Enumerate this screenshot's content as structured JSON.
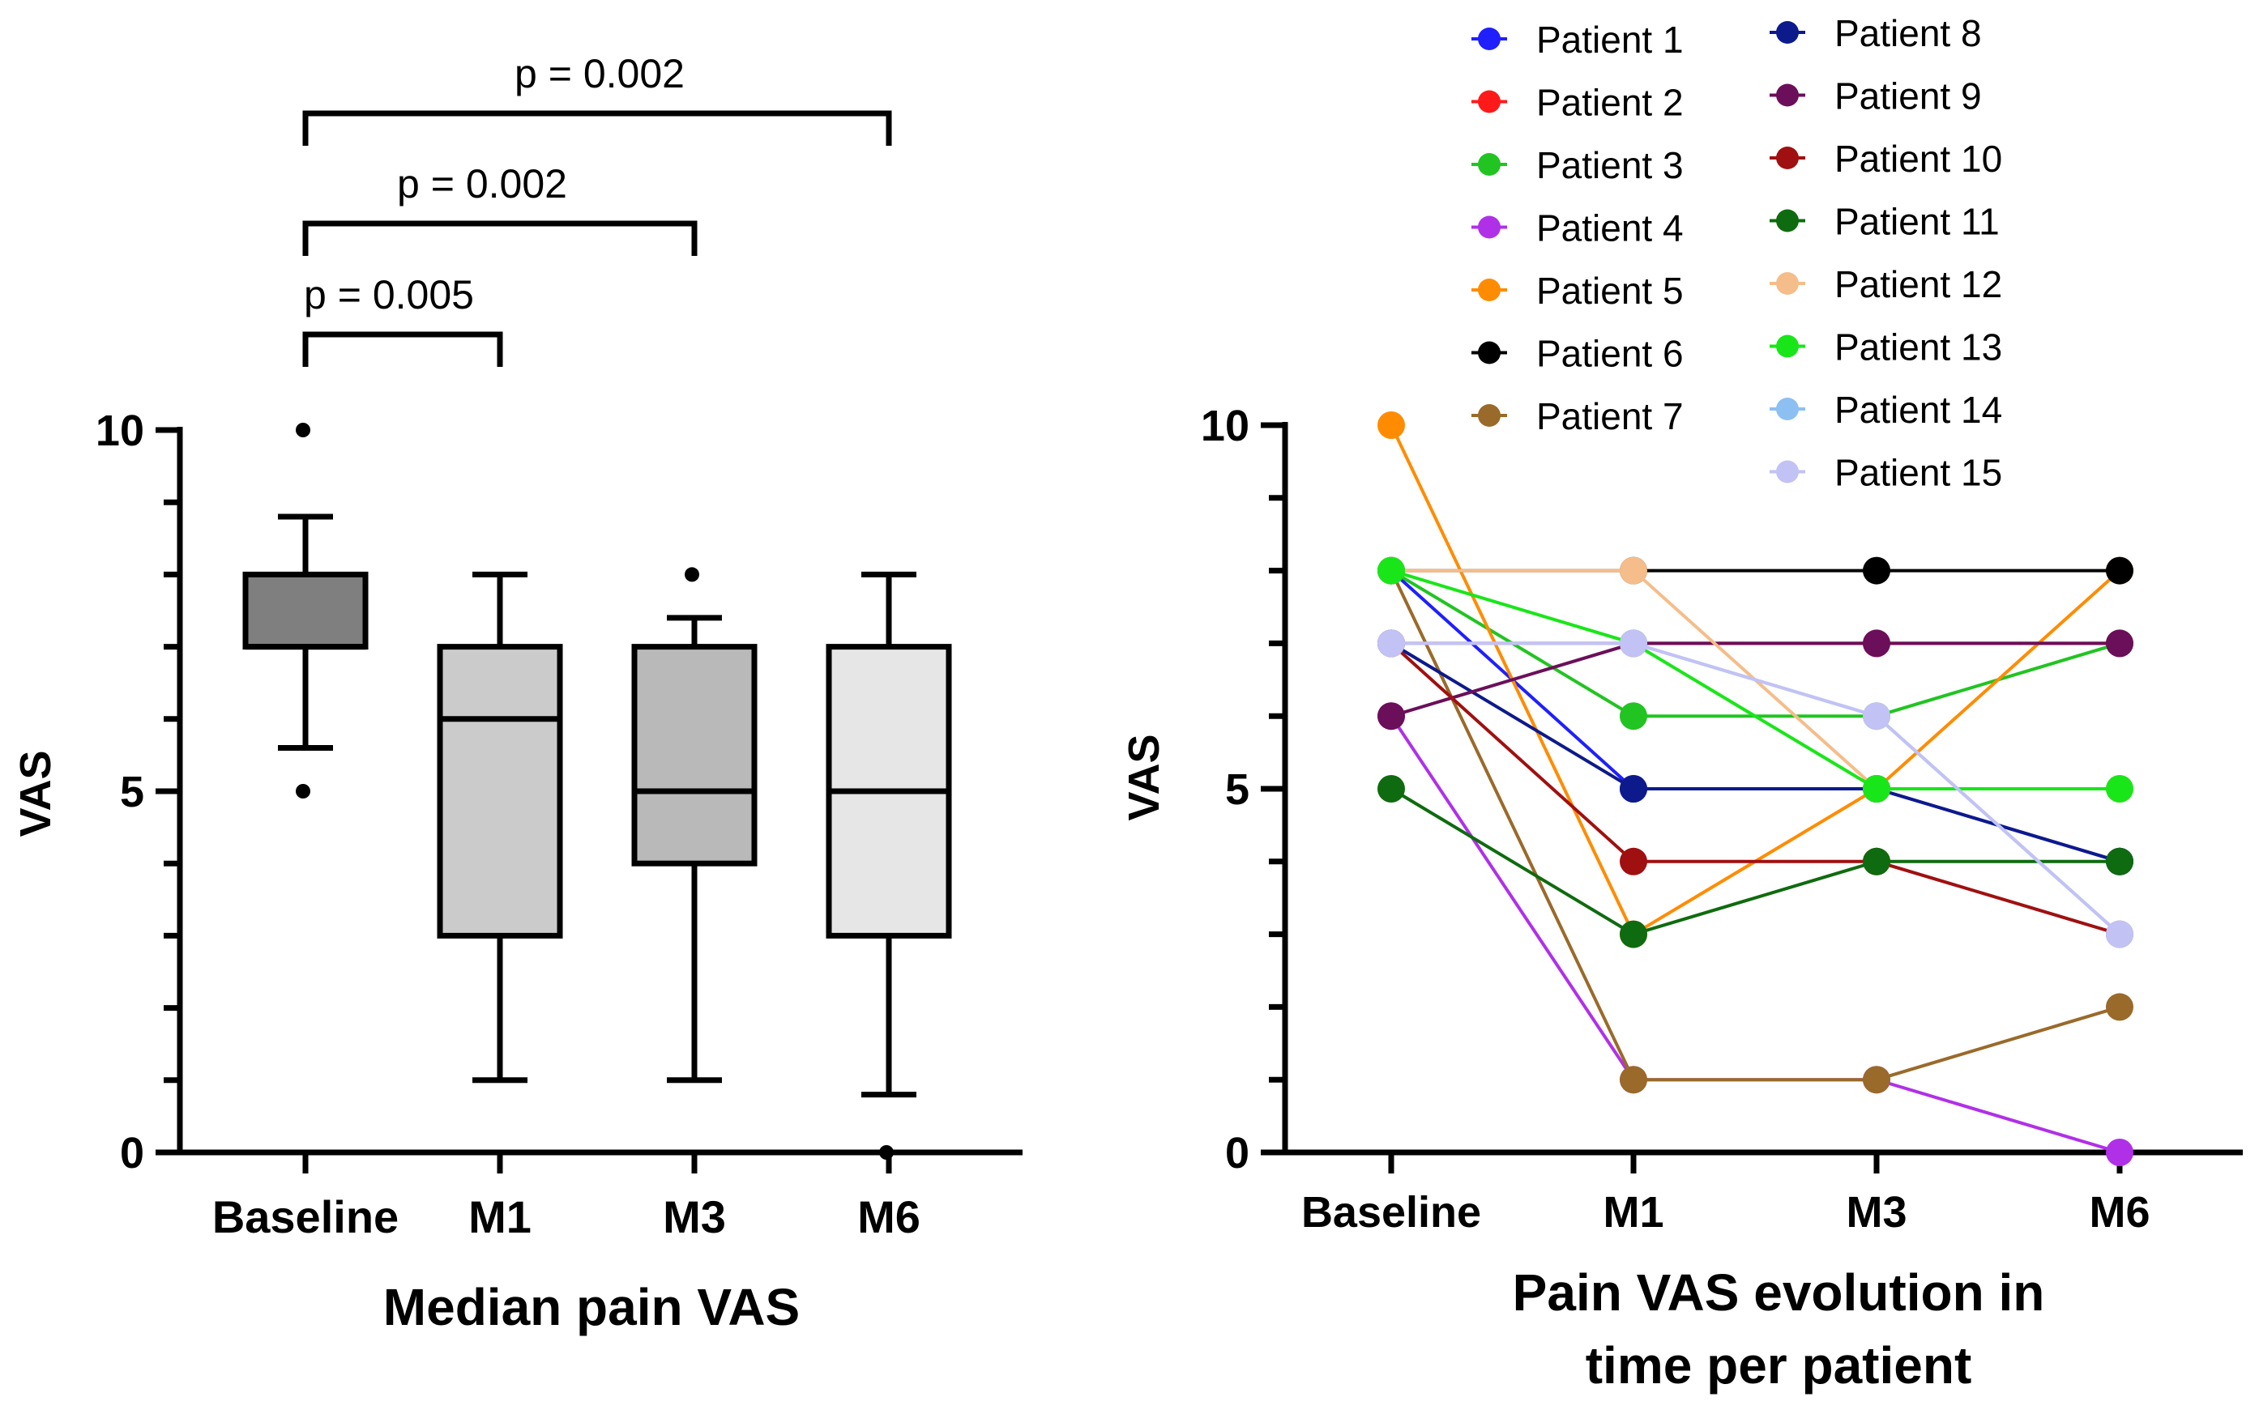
{
  "chart_data": [
    {
      "type": "box",
      "title": "Median pain VAS",
      "ylabel": "VAS",
      "categories": [
        "Baseline",
        "M1",
        "M3",
        "M6"
      ],
      "ylim": [
        0,
        10
      ],
      "yticks": [
        "0",
        "5",
        "10"
      ],
      "boxes": [
        {
          "category": "Baseline",
          "whisker_low": 5.6,
          "q1": 7.0,
          "median": 7.0,
          "q3": 8.0,
          "whisker_high": 8.8,
          "outliers": [
            10,
            5
          ],
          "fill": "#7f7f7f"
        },
        {
          "category": "M1",
          "whisker_low": 1.0,
          "q1": 3.0,
          "median": 6.0,
          "q3": 7.0,
          "whisker_high": 8.0,
          "outliers": [],
          "fill": "#cbcbcb"
        },
        {
          "category": "M3",
          "whisker_low": 1.0,
          "q1": 4.0,
          "median": 5.0,
          "q3": 7.0,
          "whisker_high": 7.4,
          "outliers": [
            8
          ],
          "fill": "#b9b9b9"
        },
        {
          "category": "M6",
          "whisker_low": 0.8,
          "q1": 3.0,
          "median": 5.0,
          "q3": 7.0,
          "whisker_high": 8.0,
          "outliers": [
            0
          ],
          "fill": "#e6e6e6"
        }
      ],
      "comparisons": [
        {
          "from": "Baseline",
          "to": "M1",
          "label": "p = 0.005"
        },
        {
          "from": "Baseline",
          "to": "M3",
          "label": "p = 0.002"
        },
        {
          "from": "Baseline",
          "to": "M6",
          "label": "p = 0.002"
        }
      ]
    },
    {
      "type": "line",
      "title": "Pain VAS evolution in time per patient",
      "title_lines": [
        "Pain VAS evolution in",
        "time per patient"
      ],
      "ylabel": "VAS",
      "categories": [
        "Baseline",
        "M1",
        "M3",
        "M6"
      ],
      "ylim": [
        0,
        10
      ],
      "yticks": [
        "0",
        "5",
        "10"
      ],
      "legend_position": "top-right",
      "series": [
        {
          "name": "Patient 1",
          "color": "#1f1fff",
          "values": [
            8,
            5,
            5,
            4
          ]
        },
        {
          "name": "Patient 2",
          "color": "#ff1a1a",
          "values": [
            7,
            7,
            7,
            7
          ]
        },
        {
          "name": "Patient 3",
          "color": "#22c422",
          "values": [
            8,
            6,
            6,
            7
          ]
        },
        {
          "name": "Patient 4",
          "color": "#b030e8",
          "values": [
            6,
            1,
            1,
            0
          ]
        },
        {
          "name": "Patient 5",
          "color": "#ff8c00",
          "values": [
            10,
            3,
            5,
            8
          ]
        },
        {
          "name": "Patient 6",
          "color": "#000000",
          "values": [
            8,
            8,
            8,
            8
          ]
        },
        {
          "name": "Patient 7",
          "color": "#9a6a2a",
          "values": [
            8,
            1,
            1,
            2
          ]
        },
        {
          "name": "Patient 8",
          "color": "#0d1a8c",
          "values": [
            7,
            5,
            5,
            4
          ]
        },
        {
          "name": "Patient 9",
          "color": "#6b0f5a",
          "values": [
            6,
            7,
            7,
            7
          ]
        },
        {
          "name": "Patient 10",
          "color": "#a01010",
          "values": [
            7,
            4,
            4,
            3
          ]
        },
        {
          "name": "Patient 11",
          "color": "#0f6b0f",
          "values": [
            5,
            3,
            4,
            4
          ]
        },
        {
          "name": "Patient 12",
          "color": "#f5bd8a",
          "values": [
            8,
            8,
            5,
            5
          ]
        },
        {
          "name": "Patient 13",
          "color": "#19e619",
          "values": [
            8,
            7,
            5,
            5
          ]
        },
        {
          "name": "Patient 14",
          "color": "#8cc0f2",
          "values": [
            7,
            7,
            6,
            3
          ]
        },
        {
          "name": "Patient 15",
          "color": "#c2c2f5",
          "values": [
            7,
            7,
            6,
            3
          ]
        }
      ]
    }
  ]
}
